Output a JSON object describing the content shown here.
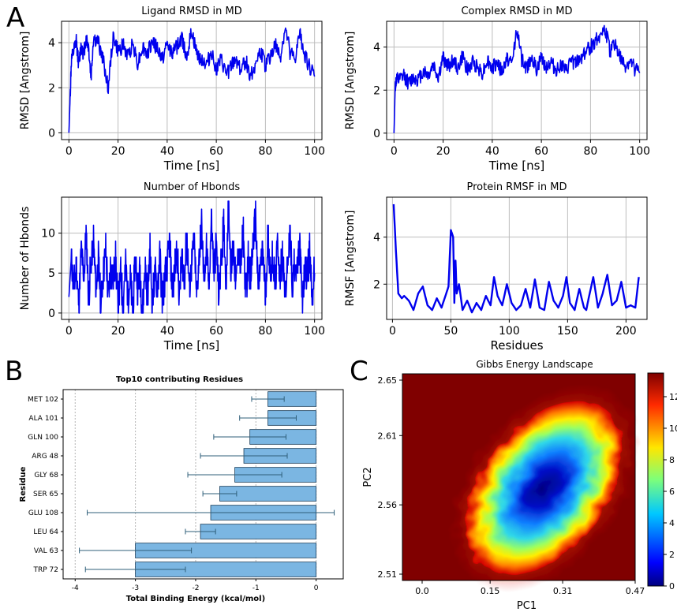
{
  "panel_labels": {
    "a": "A",
    "b": "B",
    "c": "C"
  },
  "colors": {
    "line": "#0000ee",
    "bar": "#7bb6e2",
    "bar_edge": "#1a3e5c",
    "err": "#2f5f7a",
    "grid": "#bdbdbd"
  },
  "chart_data": [
    {
      "id": "ligand_rmsd",
      "type": "line",
      "title": "Ligand RMSD in MD",
      "xlabel": "Time [ns]",
      "ylabel": "RMSD [Angstrom]",
      "xlim": [
        -3,
        103
      ],
      "ylim": [
        -0.3,
        4.95
      ],
      "xticks": [
        0,
        20,
        40,
        60,
        80,
        100
      ],
      "yticks": [
        0,
        2,
        4
      ],
      "series": [
        {
          "name": "Ligand RMSD",
          "x": [
            0,
            0.5,
            1,
            2,
            3,
            4,
            5,
            6,
            7,
            8,
            9,
            10,
            12,
            14,
            16,
            18,
            20,
            22,
            24,
            26,
            28,
            30,
            32,
            34,
            36,
            38,
            40,
            42,
            44,
            46,
            48,
            50,
            52,
            54,
            56,
            58,
            60,
            62,
            64,
            66,
            68,
            70,
            72,
            74,
            76,
            78,
            80,
            82,
            84,
            86,
            88,
            90,
            92,
            94,
            96,
            98,
            100
          ],
          "y": [
            0,
            1.6,
            3.2,
            3.6,
            4.1,
            3.0,
            3.9,
            3.5,
            4.2,
            3.8,
            2.4,
            4.2,
            4.0,
            3.2,
            2.0,
            4.3,
            3.6,
            3.9,
            3.4,
            4.0,
            3.1,
            3.8,
            3.5,
            4.1,
            3.7,
            3.3,
            3.9,
            3.6,
            3.8,
            4.2,
            3.4,
            4.5,
            3.5,
            3.3,
            3.0,
            3.6,
            2.8,
            3.2,
            2.6,
            2.9,
            3.3,
            2.8,
            3.2,
            2.5,
            3.1,
            3.6,
            3.0,
            3.4,
            3.9,
            3.3,
            4.6,
            3.6,
            3.2,
            4.4,
            3.5,
            2.9,
            2.5
          ]
        }
      ]
    },
    {
      "id": "complex_rmsd",
      "type": "line",
      "title": "Complex RMSD in MD",
      "xlabel": "Time [ns]",
      "ylabel": "RMSD [Angstrom]",
      "xlim": [
        -3,
        103
      ],
      "ylim": [
        -0.3,
        5.2
      ],
      "xticks": [
        0,
        20,
        40,
        60,
        80,
        100
      ],
      "yticks": [
        0,
        2,
        4
      ],
      "series": [
        {
          "name": "Complex RMSD",
          "x": [
            0,
            0.5,
            1,
            2,
            4,
            6,
            8,
            10,
            12,
            14,
            16,
            18,
            20,
            22,
            24,
            26,
            28,
            30,
            32,
            34,
            36,
            38,
            40,
            42,
            44,
            46,
            48,
            50,
            52,
            54,
            56,
            58,
            60,
            62,
            64,
            66,
            68,
            70,
            72,
            74,
            76,
            78,
            80,
            82,
            84,
            86,
            88,
            90,
            92,
            94,
            96,
            98,
            100
          ],
          "y": [
            0,
            2.2,
            2.5,
            2.4,
            2.7,
            2.3,
            2.6,
            2.5,
            2.9,
            2.7,
            3.2,
            2.6,
            3.5,
            3.1,
            3.4,
            3.0,
            3.6,
            2.9,
            3.3,
            3.1,
            2.8,
            3.4,
            3.0,
            3.3,
            2.8,
            3.5,
            3.2,
            4.9,
            3.4,
            3.0,
            3.6,
            2.9,
            3.5,
            3.1,
            3.3,
            2.9,
            3.2,
            2.8,
            3.4,
            3.2,
            3.5,
            3.8,
            4.0,
            4.3,
            4.6,
            4.8,
            3.8,
            4.2,
            3.5,
            3.1,
            3.3,
            3.0,
            2.8
          ]
        }
      ]
    },
    {
      "id": "hbonds",
      "type": "line",
      "title": "Number of Hbonds",
      "xlabel": "Time [ns]",
      "ylabel": "Number of Hbonds",
      "xlim": [
        -3,
        103
      ],
      "ylim": [
        -0.8,
        14.5
      ],
      "xticks": [
        0,
        20,
        40,
        60,
        80,
        100
      ],
      "yticks": [
        0,
        5,
        10
      ],
      "series": [
        {
          "name": "Hbonds",
          "x": [
            0,
            1,
            2,
            3,
            4,
            5,
            6,
            7,
            8,
            9,
            10,
            11,
            12,
            13,
            14,
            15,
            16,
            17,
            18,
            19,
            20,
            21,
            22,
            23,
            24,
            25,
            26,
            27,
            28,
            29,
            30,
            31,
            32,
            33,
            34,
            35,
            36,
            37,
            38,
            39,
            40,
            41,
            42,
            43,
            44,
            45,
            46,
            47,
            48,
            49,
            50,
            51,
            52,
            53,
            54,
            55,
            56,
            57,
            58,
            59,
            60,
            61,
            62,
            63,
            64,
            65,
            66,
            67,
            68,
            69,
            70,
            71,
            72,
            73,
            74,
            75,
            76,
            77,
            78,
            79,
            80,
            81,
            82,
            83,
            84,
            85,
            86,
            87,
            88,
            89,
            90,
            91,
            92,
            93,
            94,
            95,
            96,
            97,
            98,
            99,
            100
          ],
          "y": [
            2,
            7,
            3,
            6,
            1,
            8,
            4,
            10,
            2,
            6,
            9,
            3,
            7,
            1,
            5,
            8,
            2,
            6,
            4,
            7,
            0,
            5,
            1,
            6,
            2,
            4,
            0,
            7,
            3,
            5,
            0,
            6,
            2,
            8,
            1,
            5,
            3,
            7,
            2,
            4,
            6,
            9,
            3,
            5,
            8,
            2,
            7,
            4,
            10,
            3,
            6,
            9,
            2,
            7,
            11,
            4,
            8,
            3,
            12,
            5,
            9,
            2,
            7,
            11,
            4,
            14,
            5,
            9,
            3,
            8,
            6,
            10,
            2,
            7,
            4,
            9,
            12,
            3,
            6,
            8,
            2,
            10,
            5,
            7,
            3,
            9,
            4,
            8,
            2,
            6,
            10,
            3,
            7,
            5,
            9,
            1,
            6,
            4,
            8,
            2,
            5
          ]
        }
      ]
    },
    {
      "id": "protein_rmsf",
      "type": "line",
      "title": "Protein RMSF in MD",
      "xlabel": "Residues",
      "ylabel": "RMSF [Angstrom]",
      "xlim": [
        -5,
        218
      ],
      "ylim": [
        0.5,
        5.7
      ],
      "xticks": [
        0,
        50,
        100,
        150,
        200
      ],
      "yticks": [
        2,
        4
      ],
      "series": [
        {
          "name": "RMSF",
          "x": [
            1,
            3,
            5,
            8,
            10,
            14,
            18,
            22,
            26,
            28,
            30,
            34,
            38,
            42,
            46,
            48,
            50,
            52,
            53,
            54,
            55,
            57,
            60,
            64,
            68,
            72,
            76,
            80,
            84,
            87,
            90,
            94,
            98,
            102,
            106,
            110,
            114,
            118,
            122,
            126,
            130,
            134,
            138,
            142,
            146,
            149,
            152,
            156,
            160,
            164,
            166,
            168,
            172,
            176,
            180,
            184,
            188,
            192,
            196,
            200,
            204,
            208,
            211
          ],
          "y": [
            5.4,
            3.4,
            1.6,
            1.4,
            1.5,
            1.3,
            0.9,
            1.6,
            1.9,
            1.5,
            1.1,
            0.9,
            1.4,
            1.0,
            1.6,
            1.9,
            4.3,
            4.0,
            1.2,
            3.0,
            1.6,
            2.0,
            0.9,
            1.3,
            0.8,
            1.2,
            0.9,
            1.5,
            1.1,
            2.3,
            1.5,
            1.1,
            2.0,
            1.2,
            0.9,
            1.1,
            1.8,
            1.0,
            2.2,
            1.0,
            0.9,
            2.1,
            1.3,
            1.0,
            1.5,
            2.3,
            1.2,
            0.9,
            1.8,
            1.0,
            0.9,
            1.4,
            2.3,
            1.0,
            1.6,
            2.4,
            1.1,
            1.3,
            2.1,
            1.0,
            1.1,
            1.0,
            2.3
          ]
        }
      ]
    },
    {
      "id": "top10",
      "type": "bar",
      "title": "Top10 contributing Residues",
      "xlabel": "Total Binding Energy (kcal/mol)",
      "ylabel": "Residue",
      "xlim": [
        -4.2,
        0.45
      ],
      "xticks": [
        -4,
        -3,
        -2,
        -1,
        0
      ],
      "categories": [
        "MET 102",
        "ALA 101",
        "GLN 100",
        "ARG 48",
        "GLY 68",
        "SER 65",
        "GLU 108",
        "LEU 64",
        "VAL 63",
        "TRP 72"
      ],
      "values": [
        -0.8,
        -0.8,
        -1.1,
        -1.2,
        -1.35,
        -1.6,
        -1.75,
        -1.92,
        -3.0,
        -3.0
      ],
      "errors": [
        0.27,
        0.47,
        0.6,
        0.72,
        0.78,
        0.28,
        2.05,
        0.25,
        0.93,
        0.83
      ]
    },
    {
      "id": "gibbs",
      "type": "heatmap",
      "title": "Gibbs Energy Landscape",
      "xlabel": "PC1",
      "ylabel": "PC2",
      "xtick_labels": [
        "0.0",
        "0.15",
        "0.31",
        "0.47"
      ],
      "ytick_labels": [
        "2.65",
        "2.61",
        "2.56",
        "2.51"
      ],
      "colorbar_ticks": [
        0,
        2,
        4,
        6,
        8,
        10,
        12
      ],
      "colorbar_range": [
        0,
        13.5
      ],
      "basin_center": [
        0.27,
        2.572
      ],
      "basin_min": 0.2
    }
  ]
}
